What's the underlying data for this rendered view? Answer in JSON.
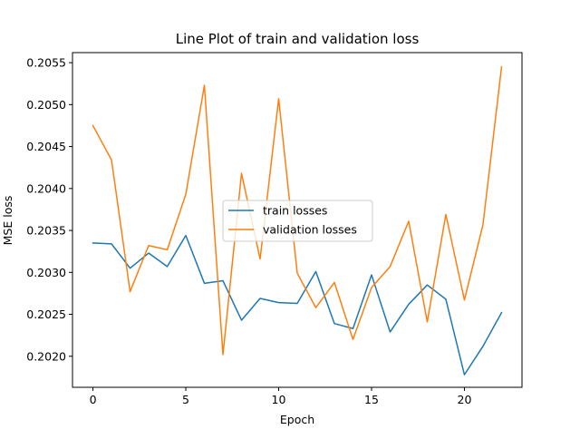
{
  "chart_data": {
    "type": "line",
    "title": "Line Plot of train and validation loss",
    "xlabel": "Epoch",
    "ylabel": "MSE loss",
    "xlim": [
      -1.1,
      23.1
    ],
    "ylim": [
      0.20163,
      0.20562
    ],
    "xticks": [
      0,
      5,
      10,
      15,
      20
    ],
    "xtick_labels": [
      "0",
      "5",
      "10",
      "15",
      "20"
    ],
    "yticks": [
      0.202,
      0.2025,
      0.203,
      0.2035,
      0.204,
      0.2045,
      0.205,
      0.2055
    ],
    "ytick_labels": [
      "0.2020",
      "0.2025",
      "0.2030",
      "0.2035",
      "0.2040",
      "0.2045",
      "0.2050",
      "0.2055"
    ],
    "grid": false,
    "legend_position": "center",
    "x": [
      0,
      1,
      2,
      3,
      4,
      5,
      6,
      7,
      8,
      9,
      10,
      11,
      12,
      13,
      14,
      15,
      16,
      17,
      18,
      19,
      20,
      21,
      22
    ],
    "series": [
      {
        "name": "train losses",
        "color": "#1f77b4",
        "values": [
          0.20335,
          0.20334,
          0.20305,
          0.20323,
          0.20307,
          0.20344,
          0.20287,
          0.2029,
          0.20243,
          0.20269,
          0.20264,
          0.20263,
          0.20301,
          0.20239,
          0.20233,
          0.20297,
          0.20229,
          0.20262,
          0.20285,
          0.20268,
          0.20178,
          0.20212,
          0.20252
        ]
      },
      {
        "name": "validation losses",
        "color": "#ff7f0e",
        "values": [
          0.20475,
          0.20434,
          0.20277,
          0.20332,
          0.20327,
          0.20393,
          0.20523,
          0.20202,
          0.20418,
          0.20316,
          0.20507,
          0.20299,
          0.20258,
          0.20288,
          0.2022,
          0.20282,
          0.20307,
          0.20361,
          0.20241,
          0.20369,
          0.20267,
          0.20357,
          0.20545
        ]
      }
    ]
  }
}
